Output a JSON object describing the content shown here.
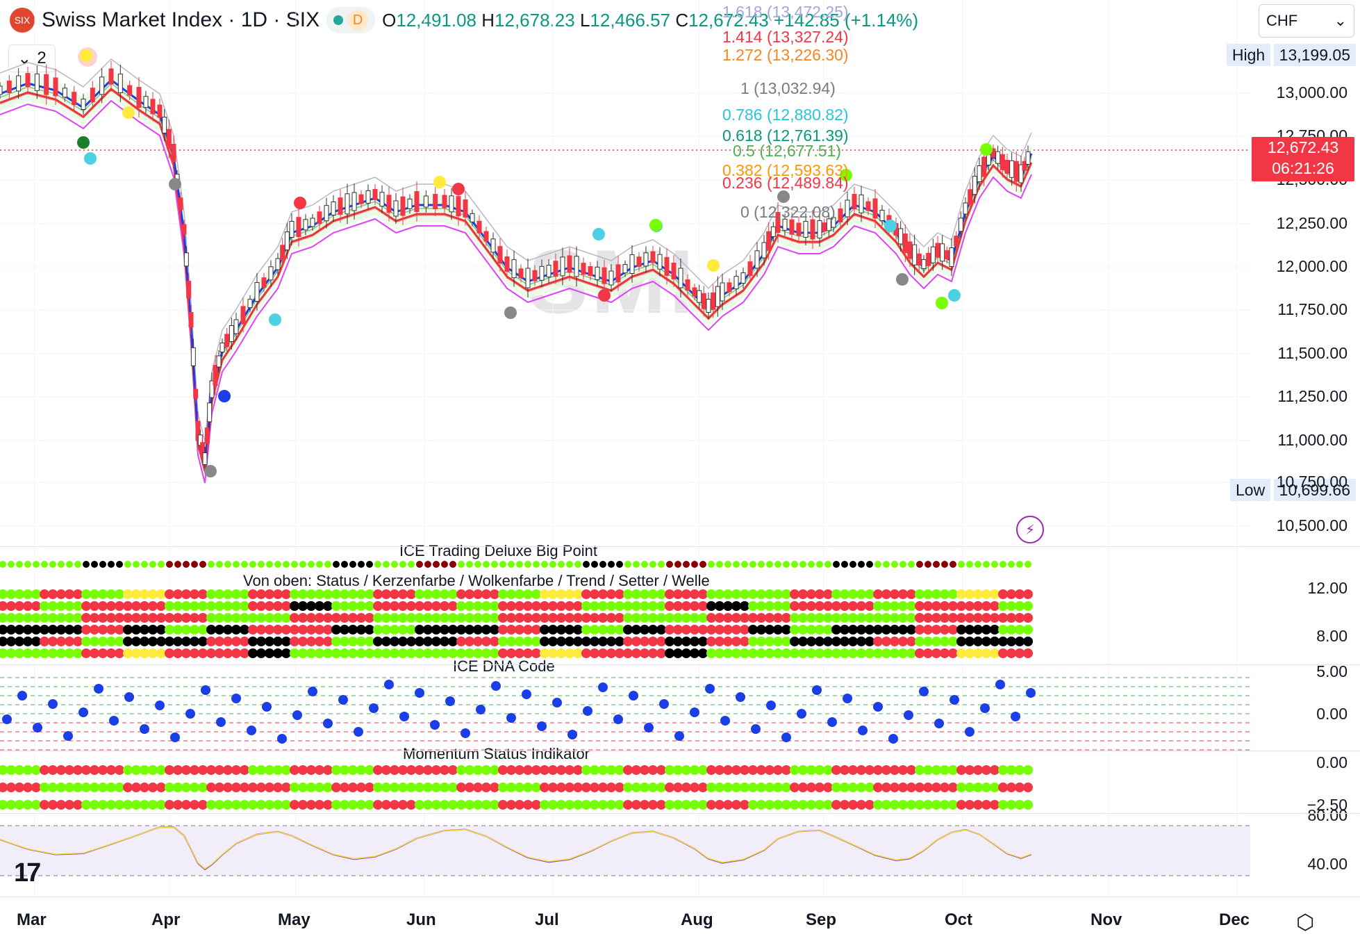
{
  "header": {
    "logo_glyph": "SIX",
    "symbol": "Swiss Market Index · 1D · SIX",
    "mode_letter": "D",
    "open_label": "O",
    "open_value": "12,491.08",
    "high_label": "H",
    "high_value": "12,678.23",
    "low_label": "L",
    "low_value": "12,466.57",
    "close_label": "C",
    "close_value": "12,672.43",
    "change": "+142.85 (+1.14%)"
  },
  "currency_select": {
    "value": "CHF",
    "icon": "chevron-down-icon"
  },
  "indicator_toggle": {
    "count": "2",
    "icon": "chevron-down-icon"
  },
  "alert_icon": {
    "glyph": "!"
  },
  "watermark": "SMI",
  "fib_levels": [
    {
      "label": "1.618 (13,472.25)",
      "color": "#9fa8da"
    },
    {
      "label": "1.414 (13,327.24)",
      "color": "#f23645"
    },
    {
      "label": "1.272 (13,226.30)",
      "color": "#f5851f"
    },
    {
      "label": "1 (13,032.94)",
      "color": "#787b86"
    },
    {
      "label": "0.786 (12,880.82)",
      "color": "#26c6da"
    },
    {
      "label": "0.618 (12,761.39)",
      "color": "#089981"
    },
    {
      "label": "0.5 (12,677.51)",
      "color": "#4caf50"
    },
    {
      "label": "0.382 (12,593.63)",
      "color": "#ff9800"
    },
    {
      "label": "0.236 (12,489.84)",
      "color": "#f23645"
    },
    {
      "label": "0 (12,322.08)",
      "color": "#787b86"
    }
  ],
  "price_axis": {
    "high_label": "High",
    "high_value": "13,199.05",
    "low_label": "Low",
    "low_value": "10,699.66",
    "ticks": [
      "13,000.00",
      "12,750.00",
      "12,500.00",
      "12,250.00",
      "12,000.00",
      "11,750.00",
      "11,500.00",
      "11,250.00",
      "11,000.00",
      "10,750.00",
      "10,500.00"
    ],
    "last_price": "12,672.43",
    "countdown": "06:21:26"
  },
  "panes": {
    "big_point_title": "ICE Trading Deluxe Big Point",
    "status_title": "Von oben: Status / Kerzenfarbe / Wolkenfarbe / Trend / Setter / Welle",
    "status_ticks": [
      "12.00",
      "8.00"
    ],
    "dna_title": "ICE DNA Code",
    "dna_ticks": [
      "5.00",
      "0.00"
    ],
    "momentum_title": "Momentum Status Indikator",
    "momentum_ticks": [
      "0.00",
      "−2.50"
    ],
    "rsi_ticks": [
      "80.00",
      "40.00"
    ]
  },
  "time_axis": [
    "Mar",
    "Apr",
    "May",
    "Jun",
    "Jul",
    "Aug",
    "Sep",
    "Oct",
    "Nov",
    "Dec"
  ],
  "branding": {
    "logo": "tradingview-logo-icon",
    "settings": "settings-hexagon-icon"
  },
  "colors": {
    "up": "#089981",
    "down": "#f23645",
    "accent": "#2962ff"
  }
}
